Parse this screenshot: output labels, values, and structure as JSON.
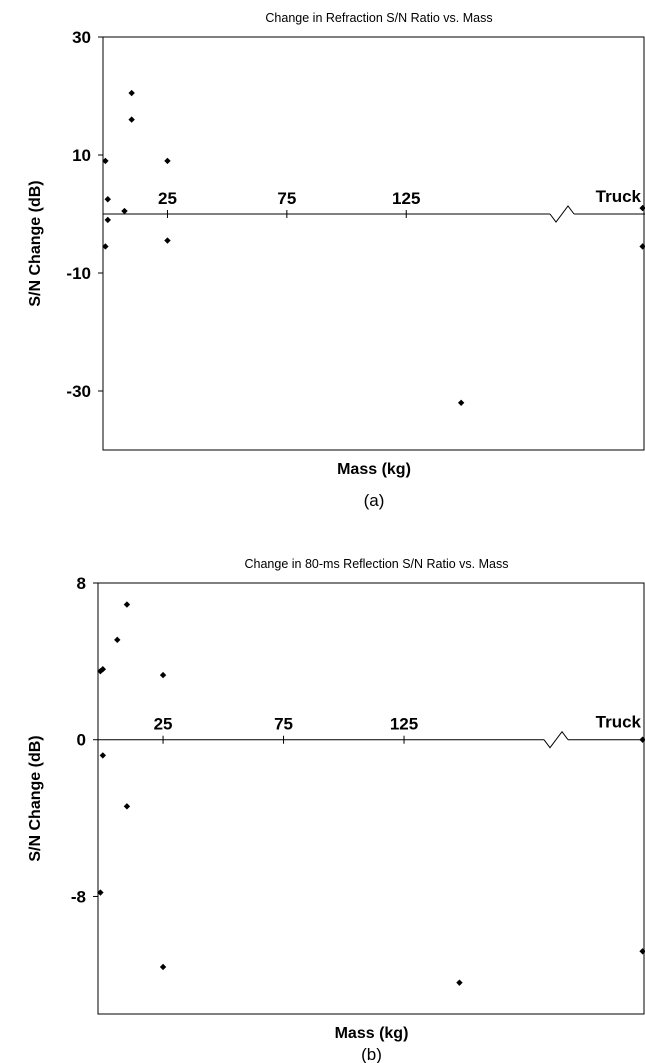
{
  "chart_data": [
    {
      "type": "scatter",
      "title": "Change in Refraction S/N Ratio vs. Mass",
      "xlabel": "Mass (kg)",
      "ylabel": "S/N Change (dB)",
      "panel_label": "(a)",
      "x_ticks": [
        "25",
        "75",
        "125"
      ],
      "x_break_label": "Truck",
      "y_ticks": [
        "30",
        "10",
        "-10",
        "-30"
      ],
      "ylim": [
        -40,
        30
      ],
      "x_display_range": [
        -2,
        225
      ],
      "grid": false,
      "series": [
        {
          "points": [
            [
              -1,
              9.0
            ],
            [
              -1,
              -5.5
            ],
            [
              0,
              2.5
            ],
            [
              0,
              -1.0
            ],
            [
              7,
              0.5
            ],
            [
              10,
              20.5
            ],
            [
              10,
              16.0
            ],
            [
              25,
              9.0
            ],
            [
              25,
              -4.5
            ],
            [
              148,
              -32.0
            ],
            [
              224,
              1.0
            ],
            [
              224,
              -5.5
            ]
          ]
        }
      ]
    },
    {
      "type": "scatter",
      "title": "Change in 80-ms Reflection S/N Ratio vs. Mass",
      "xlabel": "Mass (kg)",
      "ylabel": "S/N Change (dB)",
      "panel_label": "(b)",
      "x_ticks": [
        "25",
        "75",
        "125"
      ],
      "x_break_label": "Truck",
      "y_ticks": [
        "8",
        "0",
        "-8"
      ],
      "ylim": [
        -14,
        8
      ],
      "x_display_range": [
        -2,
        225
      ],
      "grid": false,
      "series": [
        {
          "points": [
            [
              -1,
              3.5
            ],
            [
              0,
              3.6
            ],
            [
              0,
              -0.8
            ],
            [
              -1,
              -7.8
            ],
            [
              6,
              5.1
            ],
            [
              10,
              6.9
            ],
            [
              10,
              -3.4
            ],
            [
              25,
              3.3
            ],
            [
              25,
              -11.6
            ],
            [
              148,
              -12.4
            ],
            [
              224,
              0.0
            ],
            [
              224,
              -10.8
            ]
          ]
        }
      ]
    }
  ]
}
